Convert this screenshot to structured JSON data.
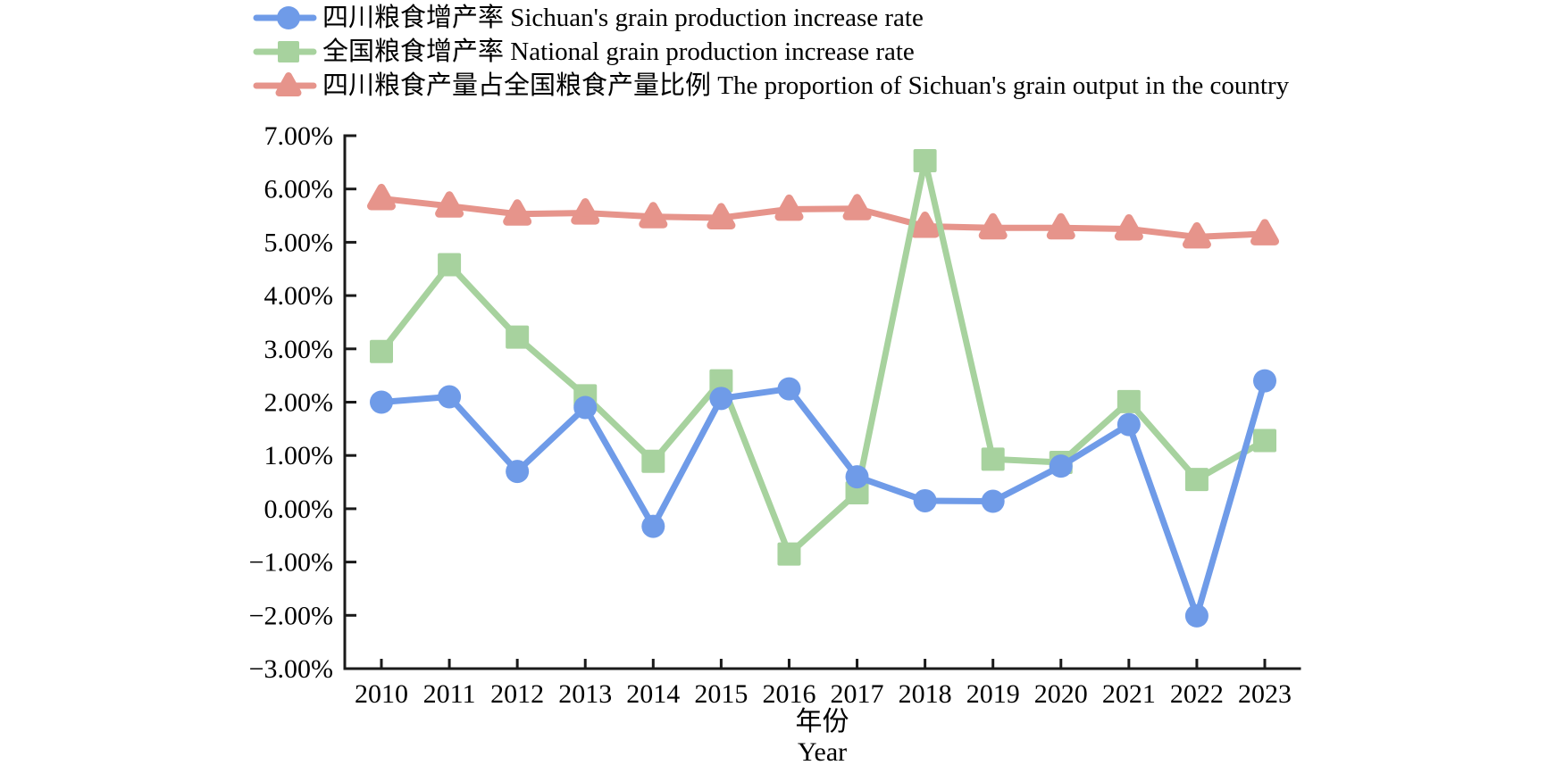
{
  "chart_data": {
    "type": "line",
    "x_tick_labels": [
      "2010",
      "2011",
      "2012",
      "2013",
      "2014",
      "2015",
      "2016",
      "2017",
      "2018",
      "2019",
      "2020",
      "2021",
      "2022",
      "2023"
    ],
    "y_tick_labels": [
      "7.00%",
      "6.00%",
      "5.00%",
      "4.00%",
      "3.00%",
      "2.00%",
      "1.00%",
      "0.00%",
      "−1.00%",
      "−2.00%",
      "−3.00%"
    ],
    "ylim": [
      -3,
      7
    ],
    "ytick_step": 1,
    "grid": false,
    "legend_position": "top-left",
    "xlabel_zh": "年份",
    "xlabel_en": "Year",
    "axis_color": "#1a1a1a",
    "series": [
      {
        "label": "四川粮食增产率  Sichuan's grain production increase rate",
        "marker": "circle",
        "color": "#6f9be8",
        "values": [
          2.0,
          2.1,
          0.7,
          1.9,
          -0.33,
          2.07,
          2.25,
          0.6,
          0.15,
          0.14,
          0.8,
          1.58,
          -2.01,
          2.4
        ]
      },
      {
        "label": "全国粮食增产率 National grain production increase rate",
        "marker": "square",
        "color": "#a7d29e",
        "values": [
          2.95,
          4.58,
          3.22,
          2.12,
          0.89,
          2.4,
          -0.85,
          0.3,
          6.53,
          0.93,
          0.87,
          2.01,
          0.55,
          1.28
        ]
      },
      {
        "label": "四川粮食产量占全国粮食产量比例 The proportion of Sichuan's grain output in the country",
        "marker": "triangle",
        "color": "#e6948b",
        "values": [
          5.82,
          5.68,
          5.53,
          5.55,
          5.48,
          5.46,
          5.62,
          5.63,
          5.3,
          5.27,
          5.27,
          5.25,
          5.1,
          5.16
        ]
      }
    ]
  }
}
